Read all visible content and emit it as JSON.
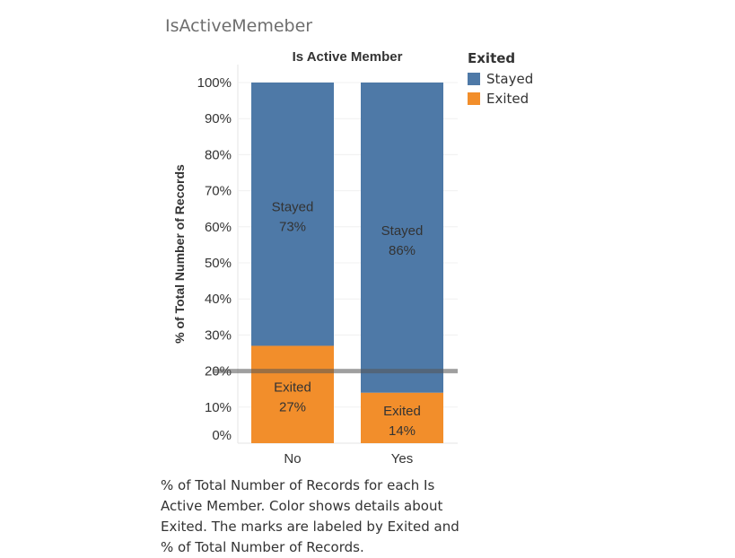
{
  "sheet_title": "IsActiveMemeber",
  "caption": "% of Total Number of Records for each Is Active Member.  Color shows details about Exited.  The marks are labeled by Exited and % of Total Number of Records.",
  "legend": {
    "title": "Exited",
    "items": [
      {
        "label": "Stayed",
        "color": "#4e79a7"
      },
      {
        "label": "Exited",
        "color": "#f28e2b"
      }
    ]
  },
  "chart_data": {
    "type": "bar",
    "stacked": true,
    "title": "Is Active Member",
    "xlabel": "",
    "ylabel": "% of Total Number of Records",
    "ylim": [
      0,
      100
    ],
    "yticks": [
      "0%",
      "10%",
      "20%",
      "30%",
      "40%",
      "50%",
      "60%",
      "70%",
      "80%",
      "90%",
      "100%"
    ],
    "categories": [
      "No",
      "Yes"
    ],
    "series": [
      {
        "name": "Exited",
        "color": "#f28e2b",
        "values": [
          27,
          14
        ],
        "labels": [
          "27%",
          "14%"
        ]
      },
      {
        "name": "Stayed",
        "color": "#4e79a7",
        "values": [
          73,
          86
        ],
        "labels": [
          "73%",
          "86%"
        ]
      }
    ],
    "reference_line": 20,
    "grid": true,
    "legend_position": "right"
  }
}
